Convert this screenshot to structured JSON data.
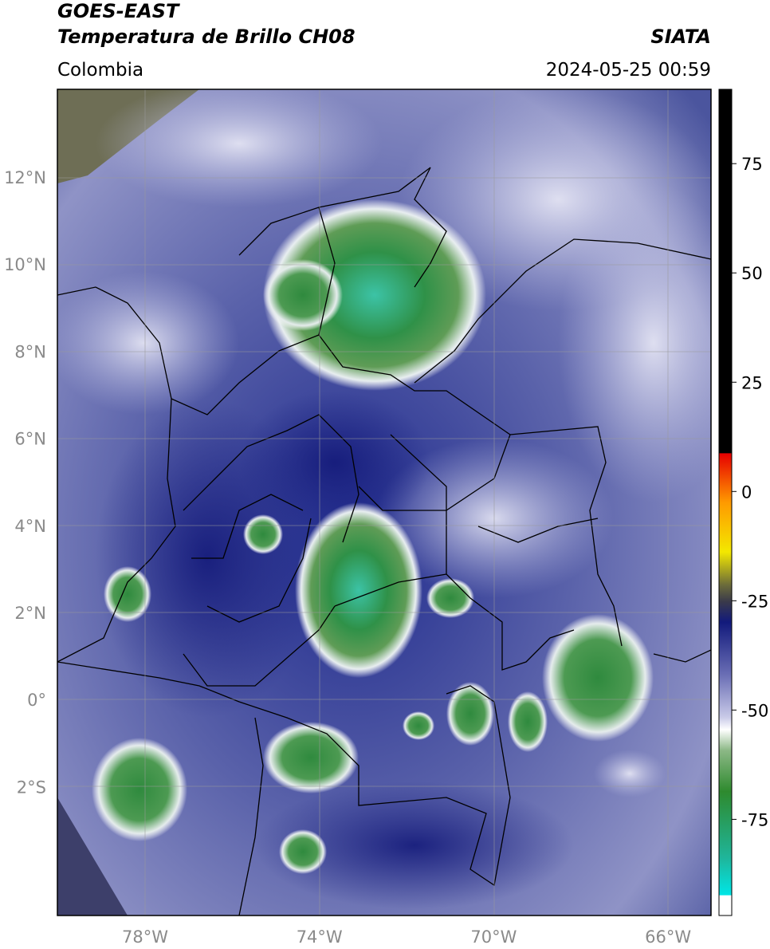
{
  "header": {
    "title_line1": "GOES-EAST",
    "title_line2": "Temperatura de Brillo CH08",
    "source": "SIATA",
    "region": "Colombia",
    "timestamp": "2024-05-25 00:59"
  },
  "map": {
    "lat_labels": [
      "12°N",
      "10°N",
      "8°N",
      "6°N",
      "4°N",
      "2°N",
      "0°",
      "2°S"
    ],
    "lon_labels": [
      "78°W",
      "74°W",
      "70°W",
      "66°W"
    ]
  },
  "colorbar": {
    "limits": [
      -97,
      92
    ],
    "ticks": [
      75,
      50,
      25,
      0,
      -25,
      -50,
      -75
    ]
  }
}
